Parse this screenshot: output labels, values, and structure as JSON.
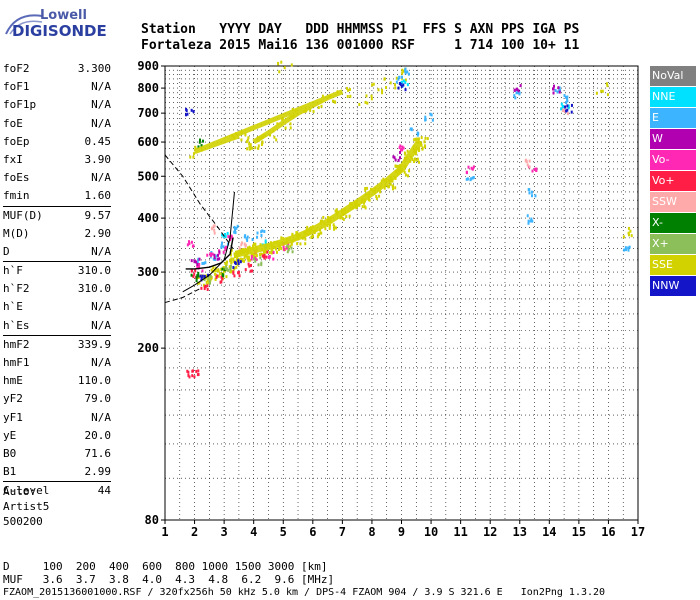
{
  "logo": {
    "line1": "Lowell",
    "line2": "DIGISONDE"
  },
  "header": {
    "line1": "Station   YYYY DAY   DDD HHMMSS P1  FFS S AXN PPS IGA PS",
    "line2": "Fortaleza 2015 Mai16 136 001000 RSF     1 714 100 10+ 11"
  },
  "params": [
    {
      "name": "foF2",
      "value": "3.300"
    },
    {
      "name": "foF1",
      "value": "N/A"
    },
    {
      "name": "foF1p",
      "value": "N/A"
    },
    {
      "name": "foE",
      "value": "N/A"
    },
    {
      "name": "foEp",
      "value": "0.45"
    },
    {
      "name": "fxI",
      "value": "3.90"
    },
    {
      "name": "foEs",
      "value": "N/A"
    },
    {
      "name": "fmin",
      "value": "1.60"
    },
    {
      "name": "MUF(D)",
      "value": "9.57"
    },
    {
      "name": "M(D)",
      "value": "2.90"
    },
    {
      "name": "D",
      "value": "N/A"
    },
    {
      "name": "h`F",
      "value": "310.0"
    },
    {
      "name": "h`F2",
      "value": "310.0"
    },
    {
      "name": "h`E",
      "value": "N/A"
    },
    {
      "name": "h`Es",
      "value": "N/A"
    },
    {
      "name": "hmF2",
      "value": "339.9"
    },
    {
      "name": "hmF1",
      "value": "N/A"
    },
    {
      "name": "hmE",
      "value": "110.0"
    },
    {
      "name": "yF2",
      "value": "79.0"
    },
    {
      "name": "yF1",
      "value": "N/A"
    },
    {
      "name": "yE",
      "value": "20.0"
    },
    {
      "name": "B0",
      "value": "71.6"
    },
    {
      "name": "B1",
      "value": "2.99"
    },
    {
      "name": "C-level",
      "value": "44"
    }
  ],
  "auto": {
    "line1": "Auto:",
    "line2": "Artist5",
    "line3": "500200"
  },
  "footer": {
    "d_row": "D     100  200  400  600  800 1000 1500 3000 [km]",
    "muf_row": "MUF   3.6  3.7  3.8  4.0  4.3  4.8  6.2  9.6 [MHz]",
    "file_row": "FZAOM_2015136001000.RSF / 320fx256h 50 kHz 5.0 km / DPS-4 FZAOM 904 / 3.9 S 321.6 E   Ion2Png 1.3.20"
  },
  "legend": [
    {
      "label": "NoVal",
      "color": "#808080"
    },
    {
      "label": "NNE",
      "color": "#00e0ff"
    },
    {
      "label": "E",
      "color": "#3cb4ff"
    },
    {
      "label": "W",
      "color": "#b000b0"
    },
    {
      "label": "Vo-",
      "color": "#ff28b4"
    },
    {
      "label": "Vo+",
      "color": "#ff1e46"
    },
    {
      "label": "SSW",
      "color": "#ffaaaa"
    },
    {
      "label": "X-",
      "color": "#008000"
    },
    {
      "label": "X+",
      "color": "#8cbe5a"
    },
    {
      "label": "SSE",
      "color": "#d2d200"
    },
    {
      "label": "NNW",
      "color": "#1414c8"
    }
  ],
  "chart_data": {
    "type": "scatter",
    "xlim": [
      1,
      17
    ],
    "ylim": [
      80,
      900
    ],
    "yscale": "log",
    "x_ticks": [
      "1",
      "2",
      "3",
      "4",
      "5",
      "6",
      "7",
      "8",
      "9",
      "10",
      "11",
      "12",
      "13",
      "14",
      "15",
      "16",
      "17"
    ],
    "y_ticks": [
      "80",
      "200",
      "300",
      "400",
      "500",
      "600",
      "700",
      "800",
      "900"
    ],
    "grid": true,
    "series": [
      {
        "name": "SSE",
        "color": "#d2d200",
        "points": [
          [
            3.4,
            330
          ],
          [
            3.8,
            335
          ],
          [
            4.2,
            340
          ],
          [
            4.6,
            345
          ],
          [
            5.0,
            352
          ],
          [
            5.5,
            362
          ],
          [
            6.0,
            375
          ],
          [
            6.5,
            392
          ],
          [
            7.0,
            412
          ],
          [
            7.5,
            434
          ],
          [
            8.0,
            458
          ],
          [
            8.5,
            486
          ],
          [
            9.0,
            520
          ],
          [
            9.3,
            560
          ],
          [
            9.6,
            600
          ],
          [
            2.3,
            290
          ],
          [
            2.8,
            300
          ],
          [
            3.2,
            312
          ],
          [
            3.6,
            330
          ],
          [
            4.0,
            600
          ],
          [
            4.5,
            630
          ],
          [
            5.0,
            665
          ],
          [
            5.5,
            700
          ],
          [
            6.0,
            730
          ],
          [
            6.5,
            760
          ],
          [
            7.0,
            785
          ],
          [
            2.0,
            570
          ],
          [
            3.5,
            620
          ],
          [
            5.0,
            900
          ],
          [
            7.7,
            760
          ],
          [
            8.2,
            800
          ],
          [
            8.6,
            830
          ],
          [
            9.0,
            865
          ],
          [
            16.5,
            370
          ],
          [
            15.8,
            800
          ]
        ]
      },
      {
        "name": "E",
        "color": "#3cb4ff",
        "points": [
          [
            2.2,
            320
          ],
          [
            2.6,
            330
          ],
          [
            3.0,
            350
          ],
          [
            3.4,
            380
          ],
          [
            3.8,
            360
          ],
          [
            4.2,
            370
          ],
          [
            9.4,
            640
          ],
          [
            9.9,
            690
          ],
          [
            11.3,
            490
          ],
          [
            12.9,
            780
          ],
          [
            13.3,
            400
          ],
          [
            13.4,
            460
          ],
          [
            14.2,
            790
          ],
          [
            14.6,
            760
          ],
          [
            16.6,
            340
          ],
          [
            8.9,
            850
          ],
          [
            9.2,
            880
          ]
        ]
      },
      {
        "name": "Vo-",
        "color": "#ff28b4",
        "points": [
          [
            1.8,
            350
          ],
          [
            2.1,
            310
          ],
          [
            2.5,
            330
          ],
          [
            2.9,
            340
          ],
          [
            3.2,
            360
          ],
          [
            4.0,
            330
          ],
          [
            4.6,
            330
          ],
          [
            5.0,
            345
          ],
          [
            9.0,
            580
          ],
          [
            11.3,
            520
          ],
          [
            13.4,
            520
          ]
        ]
      },
      {
        "name": "Vo+",
        "color": "#ff1e46",
        "points": [
          [
            1.9,
            300
          ],
          [
            2.3,
            280
          ],
          [
            2.8,
            290
          ],
          [
            3.4,
            300
          ],
          [
            3.8,
            310
          ],
          [
            4.4,
            330
          ],
          [
            1.8,
            175
          ],
          [
            2.0,
            175
          ]
        ]
      },
      {
        "name": "W",
        "color": "#b000b0",
        "points": [
          [
            2.0,
            320
          ],
          [
            2.7,
            330
          ],
          [
            12.9,
            810
          ],
          [
            14.2,
            800
          ],
          [
            8.8,
            560
          ]
        ]
      },
      {
        "name": "X-",
        "color": "#008000",
        "points": [
          [
            2.2,
            600
          ],
          [
            2.0,
            295
          ],
          [
            3.0,
            302
          ]
        ]
      },
      {
        "name": "X+",
        "color": "#8cbe5a",
        "points": [
          [
            2.4,
            290
          ],
          [
            3.1,
            310
          ],
          [
            4.1,
            320
          ],
          [
            5.2,
            340
          ]
        ]
      },
      {
        "name": "SSW",
        "color": "#ffaaaa",
        "points": [
          [
            2.6,
            380
          ],
          [
            3.6,
            350
          ],
          [
            14.5,
            710
          ],
          [
            13.3,
            540
          ]
        ]
      },
      {
        "name": "NNE",
        "color": "#00e0ff",
        "points": [
          [
            3.0,
            370
          ],
          [
            4.3,
            350
          ],
          [
            9.1,
            830
          ],
          [
            14.5,
            730
          ]
        ]
      },
      {
        "name": "NNW",
        "color": "#1414c8",
        "points": [
          [
            1.8,
            705
          ],
          [
            2.3,
            295
          ],
          [
            3.4,
            315
          ],
          [
            14.6,
            720
          ],
          [
            9.0,
            810
          ]
        ]
      }
    ]
  }
}
